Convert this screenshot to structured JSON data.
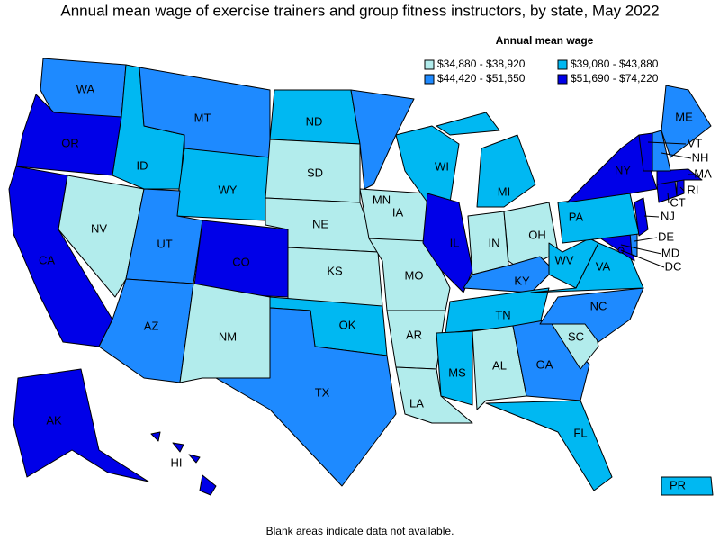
{
  "title": "Annual mean wage of exercise trainers and group fitness instructors, by state, May 2022",
  "legend": {
    "title": "Annual mean wage",
    "classes": [
      {
        "label": "$34,880 - $38,920",
        "color": "#b2ecec"
      },
      {
        "label": "$39,080 - $43,880",
        "color": "#00b8f2"
      },
      {
        "label": "$44,420 - $51,650",
        "color": "#1e8aff"
      },
      {
        "label": "$51,690 - $74,220",
        "color": "#0000e8"
      }
    ]
  },
  "states": [
    {
      "label": "WA",
      "class": 2
    },
    {
      "label": "OR",
      "class": 3
    },
    {
      "label": "CA",
      "class": 3
    },
    {
      "label": "NV",
      "class": 0
    },
    {
      "label": "ID",
      "class": 1
    },
    {
      "label": "MT",
      "class": 2
    },
    {
      "label": "WY",
      "class": 1
    },
    {
      "label": "UT",
      "class": 2
    },
    {
      "label": "CO",
      "class": 3
    },
    {
      "label": "AZ",
      "class": 2
    },
    {
      "label": "NM",
      "class": 0
    },
    {
      "label": "ND",
      "class": 1
    },
    {
      "label": "SD",
      "class": 0
    },
    {
      "label": "NE",
      "class": 0
    },
    {
      "label": "KS",
      "class": 0
    },
    {
      "label": "OK",
      "class": 1
    },
    {
      "label": "TX",
      "class": 2
    },
    {
      "label": "MN",
      "class": 2
    },
    {
      "label": "IA",
      "class": 0
    },
    {
      "label": "MO",
      "class": 0
    },
    {
      "label": "AR",
      "class": 0
    },
    {
      "label": "LA",
      "class": 0
    },
    {
      "label": "WI",
      "class": 1
    },
    {
      "label": "IL",
      "class": 3
    },
    {
      "label": "MI",
      "class": 1
    },
    {
      "label": "IN",
      "class": 0
    },
    {
      "label": "OH",
      "class": 0
    },
    {
      "label": "KY",
      "class": 2
    },
    {
      "label": "TN",
      "class": 1
    },
    {
      "label": "MS",
      "class": 1
    },
    {
      "label": "AL",
      "class": 0
    },
    {
      "label": "GA",
      "class": 2
    },
    {
      "label": "FL",
      "class": 1
    },
    {
      "label": "SC",
      "class": 0
    },
    {
      "label": "NC",
      "class": 2
    },
    {
      "label": "VA",
      "class": 1
    },
    {
      "label": "WV",
      "class": 1
    },
    {
      "label": "MD",
      "class": 3
    },
    {
      "label": "DE",
      "class": 2
    },
    {
      "label": "PA",
      "class": 1
    },
    {
      "label": "NJ",
      "class": 3
    },
    {
      "label": "NY",
      "class": 3
    },
    {
      "label": "CT",
      "class": 3
    },
    {
      "label": "RI",
      "class": 3
    },
    {
      "label": "MA",
      "class": 3
    },
    {
      "label": "VT",
      "class": 3
    },
    {
      "label": "NH",
      "class": 2
    },
    {
      "label": "ME",
      "class": 2
    },
    {
      "label": "AK",
      "class": 3
    },
    {
      "label": "HI",
      "class": 3
    },
    {
      "label": "PR",
      "class": 1
    },
    {
      "label": "DC",
      "class": 3
    }
  ],
  "note": "Blank areas indicate data not available."
}
